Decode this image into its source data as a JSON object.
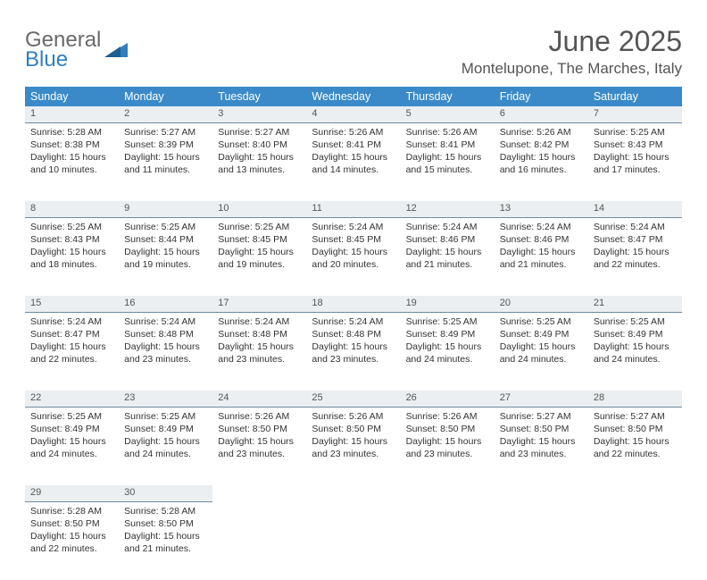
{
  "brand": {
    "name1": "General",
    "name2": "Blue"
  },
  "title": "June 2025",
  "location": "Montelupone, The Marches, Italy",
  "colors": {
    "header_bg": "#3a8ac9",
    "header_text": "#ffffff",
    "daynum_bg": "#eceff1",
    "daynum_border": "#6e8aa0",
    "body_text": "#333333",
    "title_text": "#555555",
    "logo_gray": "#6a6a6a",
    "logo_blue": "#2f7fbf",
    "page_bg": "#ffffff"
  },
  "weekdays": [
    "Sunday",
    "Monday",
    "Tuesday",
    "Wednesday",
    "Thursday",
    "Friday",
    "Saturday"
  ],
  "weeks": [
    [
      {
        "n": "1",
        "sr": "5:28 AM",
        "ss": "8:38 PM",
        "dl": "15 hours and 10 minutes."
      },
      {
        "n": "2",
        "sr": "5:27 AM",
        "ss": "8:39 PM",
        "dl": "15 hours and 11 minutes."
      },
      {
        "n": "3",
        "sr": "5:27 AM",
        "ss": "8:40 PM",
        "dl": "15 hours and 13 minutes."
      },
      {
        "n": "4",
        "sr": "5:26 AM",
        "ss": "8:41 PM",
        "dl": "15 hours and 14 minutes."
      },
      {
        "n": "5",
        "sr": "5:26 AM",
        "ss": "8:41 PM",
        "dl": "15 hours and 15 minutes."
      },
      {
        "n": "6",
        "sr": "5:26 AM",
        "ss": "8:42 PM",
        "dl": "15 hours and 16 minutes."
      },
      {
        "n": "7",
        "sr": "5:25 AM",
        "ss": "8:43 PM",
        "dl": "15 hours and 17 minutes."
      }
    ],
    [
      {
        "n": "8",
        "sr": "5:25 AM",
        "ss": "8:43 PM",
        "dl": "15 hours and 18 minutes."
      },
      {
        "n": "9",
        "sr": "5:25 AM",
        "ss": "8:44 PM",
        "dl": "15 hours and 19 minutes."
      },
      {
        "n": "10",
        "sr": "5:25 AM",
        "ss": "8:45 PM",
        "dl": "15 hours and 19 minutes."
      },
      {
        "n": "11",
        "sr": "5:24 AM",
        "ss": "8:45 PM",
        "dl": "15 hours and 20 minutes."
      },
      {
        "n": "12",
        "sr": "5:24 AM",
        "ss": "8:46 PM",
        "dl": "15 hours and 21 minutes."
      },
      {
        "n": "13",
        "sr": "5:24 AM",
        "ss": "8:46 PM",
        "dl": "15 hours and 21 minutes."
      },
      {
        "n": "14",
        "sr": "5:24 AM",
        "ss": "8:47 PM",
        "dl": "15 hours and 22 minutes."
      }
    ],
    [
      {
        "n": "15",
        "sr": "5:24 AM",
        "ss": "8:47 PM",
        "dl": "15 hours and 22 minutes."
      },
      {
        "n": "16",
        "sr": "5:24 AM",
        "ss": "8:48 PM",
        "dl": "15 hours and 23 minutes."
      },
      {
        "n": "17",
        "sr": "5:24 AM",
        "ss": "8:48 PM",
        "dl": "15 hours and 23 minutes."
      },
      {
        "n": "18",
        "sr": "5:24 AM",
        "ss": "8:48 PM",
        "dl": "15 hours and 23 minutes."
      },
      {
        "n": "19",
        "sr": "5:25 AM",
        "ss": "8:49 PM",
        "dl": "15 hours and 24 minutes."
      },
      {
        "n": "20",
        "sr": "5:25 AM",
        "ss": "8:49 PM",
        "dl": "15 hours and 24 minutes."
      },
      {
        "n": "21",
        "sr": "5:25 AM",
        "ss": "8:49 PM",
        "dl": "15 hours and 24 minutes."
      }
    ],
    [
      {
        "n": "22",
        "sr": "5:25 AM",
        "ss": "8:49 PM",
        "dl": "15 hours and 24 minutes."
      },
      {
        "n": "23",
        "sr": "5:25 AM",
        "ss": "8:49 PM",
        "dl": "15 hours and 24 minutes."
      },
      {
        "n": "24",
        "sr": "5:26 AM",
        "ss": "8:50 PM",
        "dl": "15 hours and 23 minutes."
      },
      {
        "n": "25",
        "sr": "5:26 AM",
        "ss": "8:50 PM",
        "dl": "15 hours and 23 minutes."
      },
      {
        "n": "26",
        "sr": "5:26 AM",
        "ss": "8:50 PM",
        "dl": "15 hours and 23 minutes."
      },
      {
        "n": "27",
        "sr": "5:27 AM",
        "ss": "8:50 PM",
        "dl": "15 hours and 23 minutes."
      },
      {
        "n": "28",
        "sr": "5:27 AM",
        "ss": "8:50 PM",
        "dl": "15 hours and 22 minutes."
      }
    ],
    [
      {
        "n": "29",
        "sr": "5:28 AM",
        "ss": "8:50 PM",
        "dl": "15 hours and 22 minutes."
      },
      {
        "n": "30",
        "sr": "5:28 AM",
        "ss": "8:50 PM",
        "dl": "15 hours and 21 minutes."
      },
      null,
      null,
      null,
      null,
      null
    ]
  ],
  "labels": {
    "sunrise": "Sunrise: ",
    "sunset": "Sunset: ",
    "daylight": "Daylight: "
  }
}
